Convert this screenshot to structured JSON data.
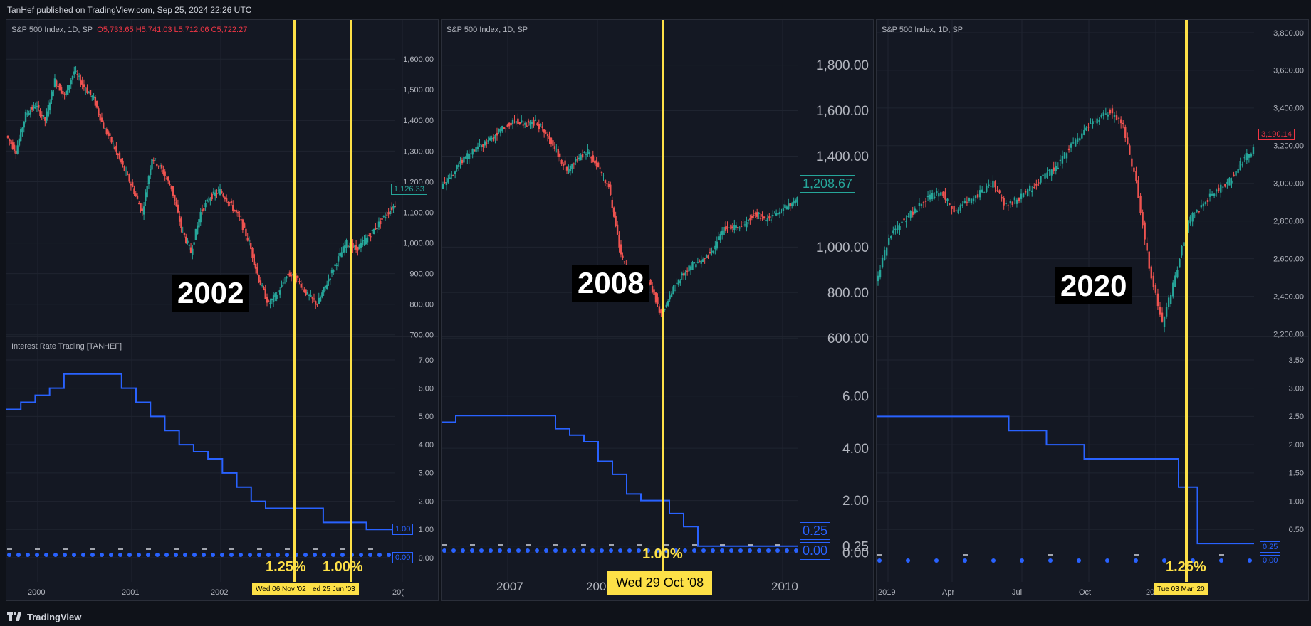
{
  "header": {
    "published": "TanHef published on TradingView.com, Sep 25, 2024 22:26 UTC"
  },
  "footer": {
    "brand": "TradingView"
  },
  "colors": {
    "background": "#141823",
    "up": "#26a69a",
    "down": "#ef5350",
    "rate_line": "#2962ff",
    "highlight": "#fde047",
    "grid": "#1f2430"
  },
  "panels": [
    {
      "symbol": "S&P 500 Index, 1D, SP",
      "ohlc": {
        "o": "O5,733.65",
        "h": "H5,741.03",
        "l": "L5,712.06",
        "c": "C5,722.27"
      },
      "indicator": "Interest Rate Trading [TANHEF]",
      "year_label": "2002",
      "last_price": "1,126.33",
      "last_rate": "1.00",
      "zero_rate": "0.00",
      "markers": [
        {
          "pct": "1.25%",
          "date": "Wed 06 Nov '02"
        },
        {
          "pct": "1.00%",
          "date": "ed 25 Jun '03"
        }
      ],
      "x_ticks": [
        "2000",
        "2001",
        "2002",
        "20("
      ]
    },
    {
      "symbol": "S&P 500 Index, 1D, SP",
      "year_label": "2008",
      "last_price": "1,208.67",
      "last_rate": "0.25",
      "zero_rate": "0.00",
      "markers": [
        {
          "pct": "1.00%",
          "date": "Wed 29 Oct '08"
        }
      ],
      "x_ticks": [
        "2007",
        "2008",
        "2010"
      ]
    },
    {
      "symbol": "S&P 500 Index, 1D, SP",
      "year_label": "2020",
      "last_price": "3,190.14",
      "last_rate": "0.25",
      "zero_rate": "0.00",
      "markers": [
        {
          "pct": "1.25%",
          "date": "Tue 03 Mar '20"
        }
      ],
      "x_ticks": [
        "2019",
        "Apr",
        "Jul",
        "Oct",
        "2020"
      ]
    }
  ],
  "chart_data": [
    {
      "type": "line",
      "subplot": "price",
      "series": [
        {
          "values": [
            1350,
            1300,
            1420,
            1450,
            1400,
            1530,
            1480,
            1560,
            1510,
            1470,
            1380,
            1320,
            1250,
            1180,
            1100,
            1280,
            1240,
            1180,
            1050,
            970,
            1100,
            1150,
            1170,
            1130,
            1080,
            1000,
            880,
            800,
            840,
            900,
            880,
            830,
            800,
            870,
            940,
            1000,
            980,
            1010,
            1050,
            1090,
            1126
          ]
        }
      ],
      "yticks": [
        "1,600.00",
        "1,500.00",
        "1,400.00",
        "1,300.00",
        "1,200.00",
        "1,100.00",
        "1,000.00",
        "900.00",
        "800.00",
        "700.00"
      ],
      "ylim": [
        660,
        1640
      ]
    },
    {
      "type": "line",
      "subplot": "rate",
      "step": true,
      "series": [
        {
          "values": [
            5.25,
            5.5,
            5.75,
            6.0,
            6.5,
            6.5,
            6.5,
            6.5,
            6.0,
            5.5,
            5.0,
            4.5,
            4.0,
            3.75,
            3.5,
            3.0,
            2.5,
            2.0,
            1.75,
            1.75,
            1.75,
            1.75,
            1.25,
            1.25,
            1.25,
            1.0,
            1.0
          ]
        }
      ],
      "yticks": [
        "7.00",
        "6.00",
        "5.00",
        "4.00",
        "3.00",
        "2.00",
        "1.00",
        "0.00"
      ],
      "ylim": [
        -0.1,
        7.2
      ]
    },
    {
      "type": "line",
      "subplot": "price",
      "series": [
        {
          "values": [
            1270,
            1320,
            1380,
            1420,
            1450,
            1480,
            1530,
            1560,
            1540,
            1550,
            1500,
            1420,
            1340,
            1390,
            1420,
            1350,
            1260,
            1000,
            850,
            900,
            830,
            700,
            800,
            880,
            920,
            940,
            990,
            1080,
            1090,
            1100,
            1150,
            1120,
            1150,
            1180,
            1209
          ]
        }
      ],
      "yticks": [
        "1,800.00",
        "1,600.00",
        "1,400.00",
        "1,000.00",
        "800.00",
        "600.00"
      ],
      "ylim": [
        560,
        1880
      ]
    },
    {
      "type": "line",
      "subplot": "rate",
      "step": true,
      "series": [
        {
          "values": [
            5.0,
            5.25,
            5.25,
            5.25,
            5.25,
            5.25,
            5.25,
            5.25,
            4.75,
            4.5,
            4.25,
            3.5,
            3.0,
            2.25,
            2.0,
            2.0,
            1.5,
            1.0,
            0.25,
            0.25,
            0.25,
            0.25,
            0.25,
            0.25,
            0.25
          ]
        }
      ],
      "yticks": [
        "6.00",
        "4.00",
        "2.00",
        "0.25",
        "0.00"
      ],
      "ylim": [
        -0.3,
        7.6
      ]
    },
    {
      "type": "line",
      "subplot": "price",
      "series": [
        {
          "values": [
            2480,
            2700,
            2800,
            2860,
            2920,
            2960,
            2850,
            2900,
            2950,
            3000,
            2880,
            2920,
            2980,
            3040,
            3100,
            3200,
            3280,
            3340,
            3380,
            3300,
            3000,
            2550,
            2250,
            2500,
            2800,
            2880,
            2950,
            3000,
            3100,
            3190
          ]
        }
      ],
      "yticks": [
        "3,800.00",
        "3,600.00",
        "3,400.00",
        "3,200.00",
        "3,000.00",
        "2,800.00",
        "2,600.00",
        "2,400.00",
        "2,200.00"
      ],
      "ylim": [
        2130,
        3830
      ]
    },
    {
      "type": "line",
      "subplot": "rate",
      "step": true,
      "series": [
        {
          "values": [
            2.5,
            2.5,
            2.5,
            2.5,
            2.5,
            2.5,
            2.5,
            2.25,
            2.25,
            2.0,
            2.0,
            1.75,
            1.75,
            1.75,
            1.75,
            1.75,
            1.25,
            0.25,
            0.25,
            0.25
          ]
        }
      ],
      "yticks": [
        "3.50",
        "3.00",
        "2.50",
        "2.00",
        "1.50",
        "1.00",
        "0.50"
      ],
      "ylim": [
        -0.05,
        3.6
      ]
    }
  ]
}
